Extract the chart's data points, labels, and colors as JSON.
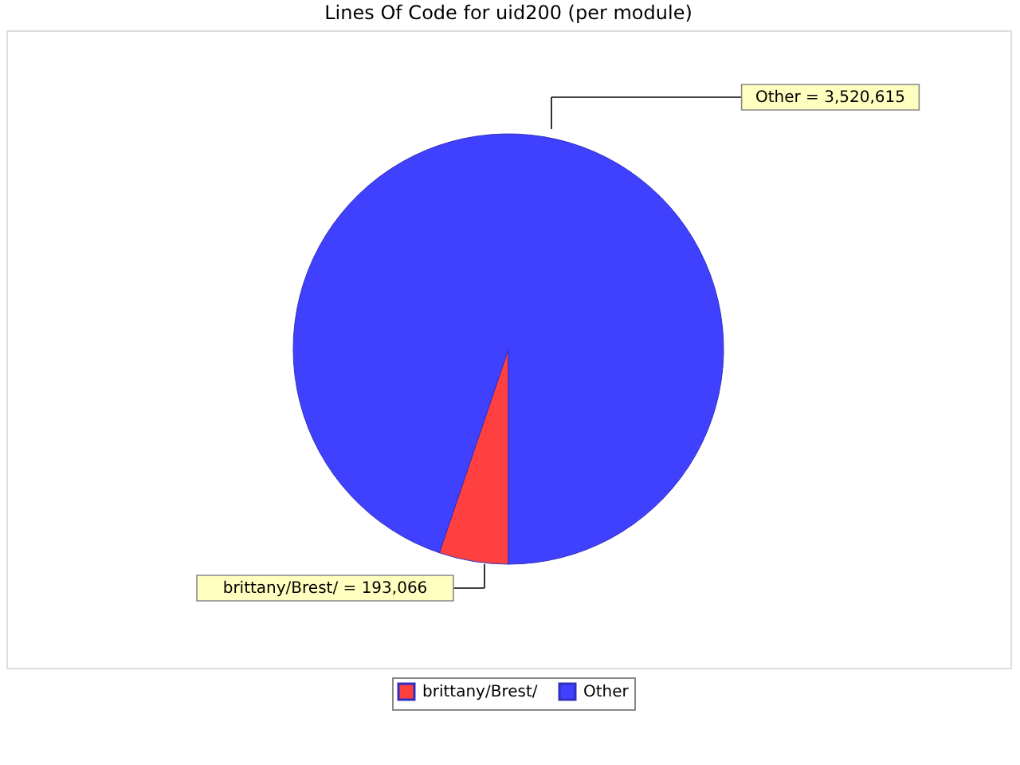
{
  "chart_data": {
    "type": "pie",
    "title": "Lines Of Code for uid200 (per module)",
    "categories": [
      "brittany/Brest/",
      "Other"
    ],
    "values": [
      193066,
      3520615
    ],
    "colors": [
      "#ff4040",
      "#4040ff"
    ],
    "value_labels": [
      "brittany/Brest/ = 193,066",
      "Other = 3,520,615"
    ],
    "legend": "bottom"
  }
}
